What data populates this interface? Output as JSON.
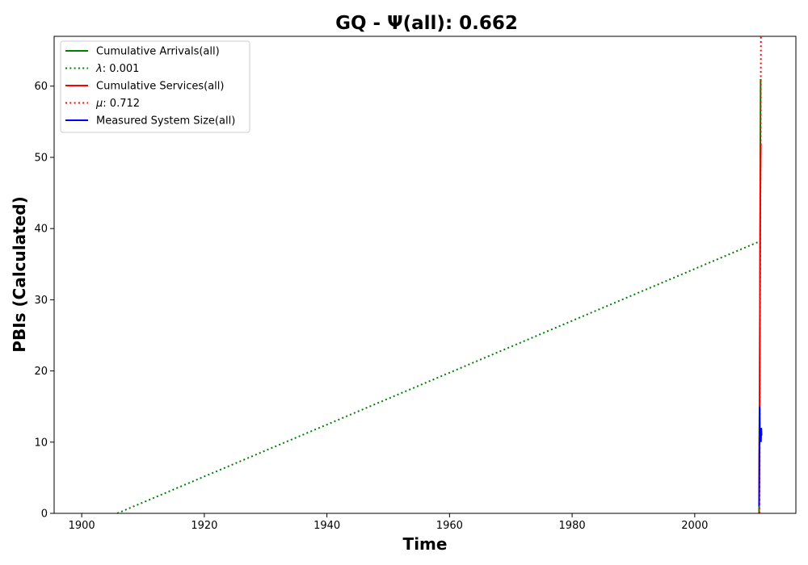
{
  "chart_data": {
    "type": "line",
    "title": "GQ -  Ψ(all): 0.662",
    "xlabel": "Time",
    "ylabel": "PBIs (Calculated)",
    "xlim": [
      1895.5,
      2016.5
    ],
    "ylim": [
      0,
      67
    ],
    "xticks": [
      1900,
      1920,
      1940,
      1960,
      1980,
      2000
    ],
    "yticks": [
      0,
      10,
      20,
      30,
      40,
      50,
      60
    ],
    "grid": false,
    "legend_position": "top-left",
    "legend": [
      {
        "label": "Cumulative Arrivals(all)",
        "style": "solid",
        "color": "#008000"
      },
      {
        "label_symbol": "λ",
        "label_rest": ": 0.001",
        "style": "dotted",
        "color": "#008000"
      },
      {
        "label": "Cumulative Services(all)",
        "style": "solid",
        "color": "#ff0000"
      },
      {
        "label_symbol": "μ",
        "label_rest": ": 0.712",
        "style": "dotted",
        "color": "#ff0000"
      },
      {
        "label": "Measured System Size(all)",
        "style": "solid",
        "color": "#0000ff"
      }
    ],
    "series": [
      {
        "name": "Cumulative Arrivals(all)",
        "color": "#008000",
        "style": "solid",
        "x": [
          2010.5,
          2010.5,
          2010.55,
          2010.6,
          2010.65,
          2010.7,
          2010.75
        ],
        "y": [
          0,
          3,
          12,
          20,
          35,
          50,
          61
        ]
      },
      {
        "name": "λ: 0.001",
        "color": "#008000",
        "style": "dotted",
        "x": [
          1905.8,
          2010.6
        ],
        "y": [
          0,
          38.2
        ]
      },
      {
        "name": "Cumulative Services(all)",
        "color": "#ff0000",
        "style": "solid",
        "x": [
          2010.5,
          2010.52,
          2010.55,
          2010.6,
          2010.65,
          2010.7,
          2010.78
        ],
        "y": [
          1,
          4,
          10,
          20,
          33,
          45,
          52
        ]
      },
      {
        "name": "μ: 0.712",
        "color": "#ff0000",
        "style": "dotted",
        "x": [
          2010.55,
          2010.8
        ],
        "y": [
          0,
          67
        ]
      },
      {
        "name": "Measured System Size(all)",
        "color": "#0000ff",
        "style": "solid",
        "x": [
          2010.5,
          2010.52,
          2010.55,
          2010.58,
          2010.6,
          2010.63,
          2010.66,
          2010.7,
          2010.75,
          2010.8,
          2010.85,
          2010.9,
          2011.0
        ],
        "y": [
          1,
          3,
          8,
          13,
          15,
          10,
          12,
          11,
          12,
          10,
          12,
          11,
          11
        ]
      }
    ]
  }
}
